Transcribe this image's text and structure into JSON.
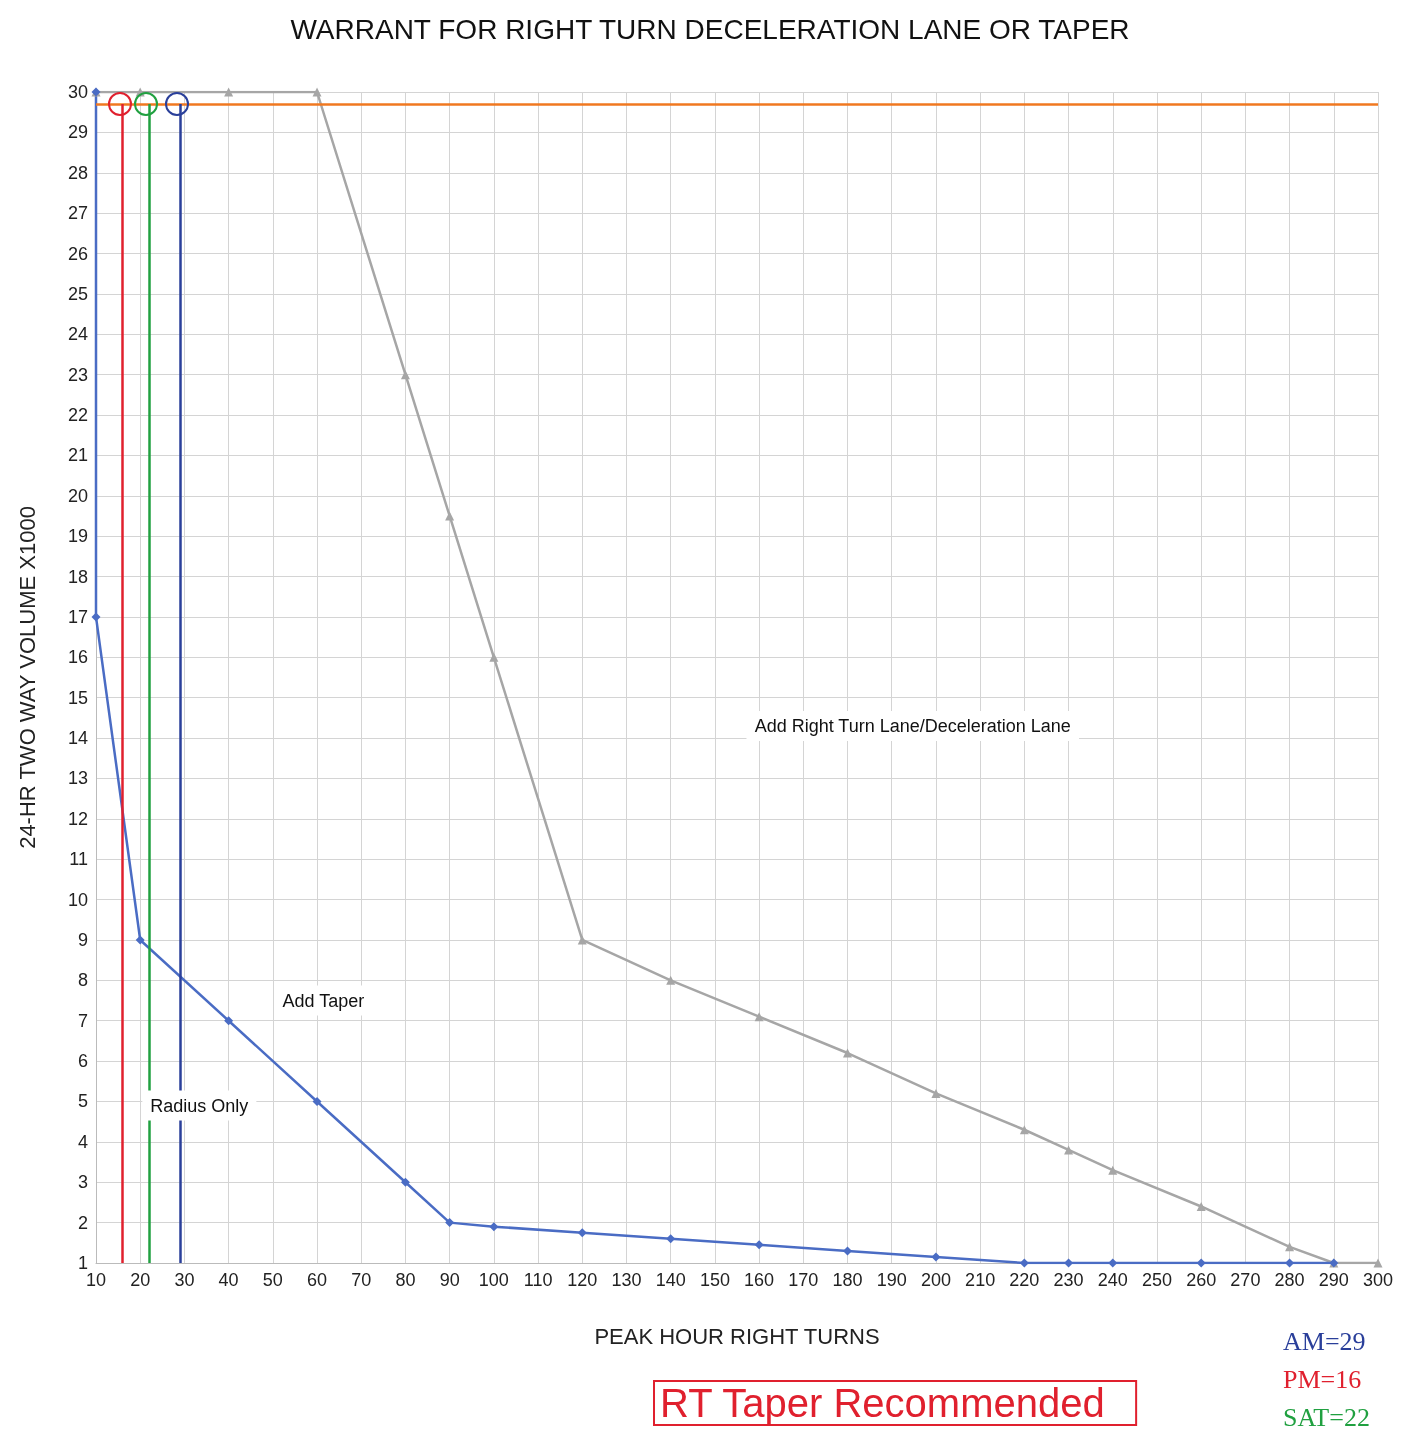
{
  "chart_data": {
    "type": "line",
    "title": "WARRANT FOR RIGHT TURN DECELERATION LANE OR TAPER",
    "xlabel": "PEAK HOUR RIGHT TURNS",
    "ylabel": "24-HR TWO WAY VOLUME X1000",
    "xlim": [
      10,
      300
    ],
    "ylim": [
      1,
      30
    ],
    "xticks": [
      10,
      20,
      30,
      40,
      50,
      60,
      70,
      80,
      90,
      100,
      110,
      120,
      130,
      140,
      150,
      160,
      170,
      180,
      190,
      200,
      210,
      220,
      230,
      240,
      250,
      260,
      270,
      280,
      290,
      300
    ],
    "yticks": [
      1,
      2,
      3,
      4,
      5,
      6,
      7,
      8,
      9,
      10,
      11,
      12,
      13,
      14,
      15,
      16,
      17,
      18,
      19,
      20,
      21,
      22,
      23,
      24,
      25,
      26,
      27,
      28,
      29,
      30
    ],
    "grid": true,
    "series": [
      {
        "color": "#a6a6a6",
        "marker": "triangle",
        "x": [
          10,
          20,
          40,
          60,
          80,
          90,
          100,
          120,
          140,
          160,
          180,
          200,
          220,
          230,
          240,
          260,
          280,
          290,
          300
        ],
        "values": [
          30,
          30,
          30,
          30,
          23,
          19.5,
          16,
          9,
          8,
          7.1,
          6.2,
          5.2,
          4.3,
          3.8,
          3.3,
          2.4,
          1.4,
          1,
          1
        ]
      },
      {
        "color": "#4a6cc4",
        "marker": "diamond",
        "x": [
          10,
          10,
          20,
          40,
          60,
          80,
          90,
          100,
          120,
          140,
          160,
          180,
          200,
          220,
          230,
          240,
          260,
          280,
          290
        ],
        "values": [
          30,
          17,
          9,
          7,
          5,
          3,
          2,
          1.9,
          1.75,
          1.6,
          1.45,
          1.3,
          1.15,
          1,
          1,
          1,
          1,
          1,
          1
        ]
      }
    ],
    "ref_lines": [
      {
        "axis": "y",
        "value": 29.7,
        "color": "#f07820"
      },
      {
        "axis": "x",
        "value": 29,
        "label": "AM=29",
        "color": "#2a3f9a"
      },
      {
        "axis": "x",
        "value": 16,
        "label": "PM=16",
        "color": "#e0202e"
      },
      {
        "axis": "x",
        "value": 22,
        "label": "SAT=22",
        "color": "#20a040"
      }
    ],
    "annotations": [
      "Add Right Turn Lane/Deceleration Lane",
      "Add Taper",
      "Radius Only",
      "RT Taper Recommended"
    ]
  }
}
